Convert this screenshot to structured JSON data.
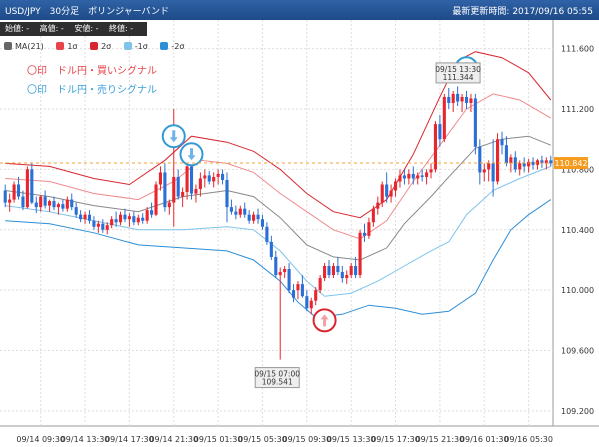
{
  "header": {
    "title": "USD/JPY　30分足　ボリンジャーバンド",
    "updated": "最新更新時間: 2017/09/16 05:55"
  },
  "ohlc_bar": {
    "open": "始値: -",
    "high": "高値: -",
    "low": "安値: -",
    "close": "終値: -"
  },
  "legend": [
    {
      "label": "MA(21)",
      "color": "#666666"
    },
    {
      "label": "1σ",
      "color": "#e8434a"
    },
    {
      "label": "2σ",
      "color": "#d9262e"
    },
    {
      "label": "-1σ",
      "color": "#7ec3ea"
    },
    {
      "label": "-2σ",
      "color": "#2d8ed6"
    }
  ],
  "notes": {
    "buy": "〇印　ドル円・買いシグナル",
    "sell": "〇印　ドル円・売りシグナル"
  },
  "chart_data": {
    "type": "candlestick",
    "y_ticks": [
      111.6,
      111.2,
      110.8,
      110.4,
      110.0,
      109.6,
      109.2
    ],
    "ylim": [
      109.1,
      111.75
    ],
    "x_ticks": [
      "09/14 09:30",
      "09/14 13:30",
      "09/14 17:30",
      "09/14 21:30",
      "09/15 01:30",
      "09/15 05:30",
      "09/15 09:30",
      "09/15 13:30",
      "09/15 17:30",
      "09/15 21:30",
      "09/16 01:30",
      "09/16 05:30"
    ],
    "last_price": "110.842",
    "annotations": [
      {
        "label": "09/15 13:30",
        "value": "111.344"
      },
      {
        "label": "09/15 07:00",
        "value": "109.541"
      }
    ],
    "signals": [
      {
        "type": "sell",
        "x_index": 38,
        "y": 111.02
      },
      {
        "type": "sell",
        "x_index": 42,
        "y": 110.9
      },
      {
        "type": "buy",
        "x_index": 72,
        "y": 109.8
      },
      {
        "type": "sell",
        "x_index": 104,
        "y": 111.47
      }
    ],
    "candles": [
      [
        110.66,
        110.7,
        110.55,
        110.58
      ],
      [
        110.58,
        110.64,
        110.52,
        110.6
      ],
      [
        110.6,
        110.72,
        110.58,
        110.7
      ],
      [
        110.7,
        110.75,
        110.6,
        110.62
      ],
      [
        110.62,
        110.66,
        110.53,
        110.55
      ],
      [
        110.55,
        110.82,
        110.54,
        110.8
      ],
      [
        110.8,
        110.84,
        110.57,
        110.58
      ],
      [
        110.58,
        110.62,
        110.51,
        110.55
      ],
      [
        110.55,
        110.63,
        110.52,
        110.62
      ],
      [
        110.62,
        110.66,
        110.54,
        110.56
      ],
      [
        110.56,
        110.6,
        110.52,
        110.59
      ],
      [
        110.59,
        110.62,
        110.53,
        110.55
      ],
      [
        110.55,
        110.58,
        110.5,
        110.57
      ],
      [
        110.57,
        110.6,
        110.52,
        110.54
      ],
      [
        110.54,
        110.62,
        110.52,
        110.6
      ],
      [
        110.6,
        110.64,
        110.53,
        110.55
      ],
      [
        110.55,
        110.58,
        110.48,
        110.5
      ],
      [
        110.5,
        110.53,
        110.45,
        110.47
      ],
      [
        110.47,
        110.52,
        110.44,
        110.5
      ],
      [
        110.5,
        110.53,
        110.44,
        110.46
      ],
      [
        110.46,
        110.49,
        110.4,
        110.42
      ],
      [
        110.42,
        110.46,
        110.38,
        110.44
      ],
      [
        110.44,
        110.47,
        110.38,
        110.4
      ],
      [
        110.4,
        110.45,
        110.37,
        110.43
      ],
      [
        110.43,
        110.49,
        110.41,
        110.47
      ],
      [
        110.47,
        110.52,
        110.42,
        110.45
      ],
      [
        110.45,
        110.52,
        110.43,
        110.5
      ],
      [
        110.5,
        110.54,
        110.45,
        110.47
      ],
      [
        110.47,
        110.51,
        110.42,
        110.49
      ],
      [
        110.49,
        110.52,
        110.43,
        110.45
      ],
      [
        110.45,
        110.5,
        110.43,
        110.48
      ],
      [
        110.48,
        110.51,
        110.44,
        110.46
      ],
      [
        110.46,
        110.55,
        110.44,
        110.53
      ],
      [
        110.53,
        110.58,
        110.48,
        110.5
      ],
      [
        110.5,
        110.72,
        110.49,
        110.7
      ],
      [
        110.7,
        110.82,
        110.66,
        110.78
      ],
      [
        110.78,
        110.84,
        110.52,
        110.55
      ],
      [
        110.55,
        110.6,
        110.5,
        110.58
      ],
      [
        110.58,
        111.2,
        110.42,
        110.75
      ],
      [
        110.75,
        110.8,
        110.6,
        110.62
      ],
      [
        110.62,
        110.68,
        110.55,
        110.65
      ],
      [
        110.65,
        110.85,
        110.6,
        110.82
      ],
      [
        110.82,
        110.88,
        110.6,
        110.64
      ],
      [
        110.64,
        110.7,
        110.58,
        110.67
      ],
      [
        110.67,
        110.78,
        110.62,
        110.74
      ],
      [
        110.74,
        110.8,
        110.68,
        110.76
      ],
      [
        110.76,
        110.79,
        110.7,
        110.72
      ],
      [
        110.72,
        110.78,
        110.68,
        110.75
      ],
      [
        110.75,
        110.8,
        110.7,
        110.77
      ],
      [
        110.77,
        110.8,
        110.7,
        110.73
      ],
      [
        110.73,
        110.78,
        110.45,
        110.55
      ],
      [
        110.55,
        110.6,
        110.5,
        110.52
      ],
      [
        110.52,
        110.56,
        110.47,
        110.5
      ],
      [
        110.5,
        110.56,
        110.48,
        110.54
      ],
      [
        110.54,
        110.58,
        110.48,
        110.5
      ],
      [
        110.5,
        110.53,
        110.44,
        110.46
      ],
      [
        110.46,
        110.52,
        110.44,
        110.5
      ],
      [
        110.5,
        110.54,
        110.44,
        110.47
      ],
      [
        110.47,
        110.5,
        110.4,
        110.42
      ],
      [
        110.42,
        110.45,
        110.3,
        110.32
      ],
      [
        110.32,
        110.36,
        110.2,
        110.22
      ],
      [
        110.22,
        110.26,
        110.08,
        110.1
      ],
      [
        110.1,
        110.15,
        109.54,
        110.12
      ],
      [
        110.12,
        110.16,
        110.08,
        110.14
      ],
      [
        110.14,
        110.18,
        109.98,
        110.0
      ],
      [
        110.0,
        110.04,
        109.92,
        109.95
      ],
      [
        110.0,
        110.06,
        109.94,
        110.04
      ],
      [
        110.04,
        110.1,
        109.95,
        109.96
      ],
      [
        109.96,
        110.0,
        109.86,
        109.88
      ],
      [
        109.88,
        109.95,
        109.84,
        109.93
      ],
      [
        109.93,
        110.02,
        109.9,
        110.0
      ],
      [
        110.0,
        110.1,
        109.98,
        110.08
      ],
      [
        110.08,
        110.18,
        110.06,
        110.16
      ],
      [
        110.16,
        110.2,
        110.08,
        110.1
      ],
      [
        110.1,
        110.18,
        110.08,
        110.16
      ],
      [
        110.16,
        110.22,
        110.1,
        110.12
      ],
      [
        110.12,
        110.16,
        110.05,
        110.08
      ],
      [
        110.08,
        110.13,
        110.04,
        110.1
      ],
      [
        110.1,
        110.18,
        110.08,
        110.16
      ],
      [
        110.16,
        110.22,
        110.08,
        110.1
      ],
      [
        110.1,
        110.4,
        110.08,
        110.38
      ],
      [
        110.38,
        110.44,
        110.32,
        110.36
      ],
      [
        110.36,
        110.48,
        110.34,
        110.45
      ],
      [
        110.45,
        110.56,
        110.42,
        110.54
      ],
      [
        110.54,
        110.62,
        110.5,
        110.58
      ],
      [
        110.58,
        110.72,
        110.55,
        110.7
      ],
      [
        110.7,
        110.78,
        110.58,
        110.62
      ],
      [
        110.62,
        110.7,
        110.58,
        110.66
      ],
      [
        110.66,
        110.74,
        110.62,
        110.72
      ],
      [
        110.72,
        110.8,
        110.68,
        110.76
      ],
      [
        110.76,
        110.8,
        110.7,
        110.74
      ],
      [
        110.74,
        110.8,
        110.7,
        110.77
      ],
      [
        110.77,
        110.82,
        110.7,
        110.74
      ],
      [
        110.74,
        110.78,
        110.7,
        110.76
      ],
      [
        110.76,
        110.8,
        110.72,
        110.75
      ],
      [
        110.75,
        110.8,
        110.7,
        110.78
      ],
      [
        110.78,
        110.84,
        110.74,
        110.8
      ],
      [
        110.8,
        111.12,
        110.78,
        111.1
      ],
      [
        111.1,
        111.16,
        110.95,
        111.0
      ],
      [
        111.0,
        111.3,
        110.98,
        111.28
      ],
      [
        111.28,
        111.34,
        111.2,
        111.24
      ],
      [
        111.24,
        111.32,
        111.18,
        111.3
      ],
      [
        111.3,
        111.35,
        111.22,
        111.25
      ],
      [
        111.25,
        111.3,
        111.18,
        111.28
      ],
      [
        111.28,
        111.32,
        111.2,
        111.24
      ],
      [
        111.24,
        111.3,
        111.18,
        111.27
      ],
      [
        111.27,
        111.3,
        110.9,
        110.95
      ],
      [
        110.95,
        111.0,
        110.7,
        110.78
      ],
      [
        110.78,
        110.84,
        110.72,
        110.8
      ],
      [
        110.8,
        110.86,
        110.72,
        110.84
      ],
      [
        110.84,
        111.0,
        110.62,
        110.72
      ],
      [
        110.72,
        111.04,
        110.7,
        111.0
      ],
      [
        111.0,
        111.05,
        110.9,
        110.96
      ],
      [
        110.96,
        111.02,
        110.82,
        110.84
      ],
      [
        110.84,
        110.9,
        110.78,
        110.88
      ],
      [
        110.88,
        110.92,
        110.78,
        110.8
      ],
      [
        110.8,
        110.86,
        110.76,
        110.84
      ],
      [
        110.84,
        110.88,
        110.78,
        110.82
      ],
      [
        110.82,
        110.87,
        110.78,
        110.85
      ],
      [
        110.85,
        110.88,
        110.8,
        110.83
      ],
      [
        110.83,
        110.87,
        110.8,
        110.86
      ],
      [
        110.86,
        110.89,
        110.81,
        110.84
      ],
      [
        110.84,
        110.88,
        110.8,
        110.86
      ],
      [
        110.86,
        110.89,
        110.82,
        110.84
      ]
    ],
    "bollinger": {
      "ma21": [
        [
          0,
          110.66
        ],
        [
          10,
          110.62
        ],
        [
          20,
          110.56
        ],
        [
          30,
          110.52
        ],
        [
          40,
          110.62
        ],
        [
          50,
          110.66
        ],
        [
          56,
          110.62
        ],
        [
          62,
          110.48
        ],
        [
          68,
          110.3
        ],
        [
          74,
          110.22
        ],
        [
          80,
          110.2
        ],
        [
          86,
          110.28
        ],
        [
          90,
          110.44
        ],
        [
          96,
          110.62
        ],
        [
          100,
          110.75
        ],
        [
          106,
          110.94
        ],
        [
          112,
          111.0
        ],
        [
          118,
          111.02
        ],
        [
          123,
          110.96
        ]
      ],
      "p1": [
        [
          0,
          110.74
        ],
        [
          10,
          110.72
        ],
        [
          20,
          110.64
        ],
        [
          30,
          110.6
        ],
        [
          38,
          110.72
        ],
        [
          44,
          110.86
        ],
        [
          50,
          110.84
        ],
        [
          56,
          110.78
        ],
        [
          62,
          110.64
        ],
        [
          68,
          110.52
        ],
        [
          74,
          110.4
        ],
        [
          80,
          110.34
        ],
        [
          86,
          110.46
        ],
        [
          92,
          110.72
        ],
        [
          98,
          110.96
        ],
        [
          104,
          111.2
        ],
        [
          110,
          111.3
        ],
        [
          116,
          111.26
        ],
        [
          123,
          111.14
        ]
      ],
      "p2": [
        [
          0,
          110.84
        ],
        [
          10,
          110.82
        ],
        [
          20,
          110.74
        ],
        [
          28,
          110.7
        ],
        [
          36,
          110.86
        ],
        [
          42,
          111.02
        ],
        [
          50,
          110.98
        ],
        [
          56,
          110.92
        ],
        [
          62,
          110.8
        ],
        [
          68,
          110.64
        ],
        [
          74,
          110.52
        ],
        [
          80,
          110.48
        ],
        [
          86,
          110.6
        ],
        [
          92,
          110.9
        ],
        [
          98,
          111.28
        ],
        [
          102,
          111.52
        ],
        [
          106,
          111.58
        ],
        [
          112,
          111.54
        ],
        [
          118,
          111.44
        ],
        [
          123,
          111.26
        ]
      ],
      "m1": [
        [
          0,
          110.56
        ],
        [
          10,
          110.52
        ],
        [
          20,
          110.46
        ],
        [
          30,
          110.4
        ],
        [
          40,
          110.4
        ],
        [
          50,
          110.42
        ],
        [
          56,
          110.4
        ],
        [
          62,
          110.26
        ],
        [
          68,
          110.06
        ],
        [
          72,
          109.96
        ],
        [
          78,
          109.98
        ],
        [
          84,
          110.06
        ],
        [
          90,
          110.16
        ],
        [
          96,
          110.26
        ],
        [
          100,
          110.32
        ],
        [
          104,
          110.5
        ],
        [
          110,
          110.66
        ],
        [
          116,
          110.74
        ],
        [
          123,
          110.82
        ]
      ],
      "m2": [
        [
          0,
          110.46
        ],
        [
          10,
          110.44
        ],
        [
          20,
          110.38
        ],
        [
          30,
          110.3
        ],
        [
          40,
          110.28
        ],
        [
          50,
          110.26
        ],
        [
          56,
          110.2
        ],
        [
          62,
          110.06
        ],
        [
          66,
          109.92
        ],
        [
          70,
          109.82
        ],
        [
          76,
          109.84
        ],
        [
          82,
          109.9
        ],
        [
          88,
          109.88
        ],
        [
          94,
          109.84
        ],
        [
          100,
          109.86
        ],
        [
          106,
          109.98
        ],
        [
          110,
          110.2
        ],
        [
          114,
          110.4
        ],
        [
          118,
          110.5
        ],
        [
          123,
          110.6
        ]
      ]
    }
  }
}
